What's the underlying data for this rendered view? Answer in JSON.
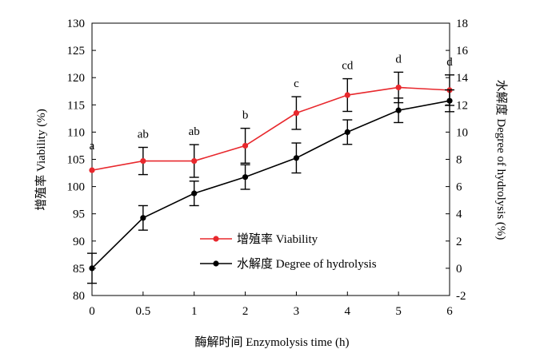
{
  "chart_data": {
    "type": "line",
    "xlabel": "酶解时间 Enzymolysis time (h)",
    "ylabel_left": "增殖率 Viability (%)",
    "ylabel_right": "水解度 Degree of hydrolysis (%)",
    "x": [
      "0",
      "0.5",
      "1",
      "2",
      "3",
      "4",
      "5",
      "6"
    ],
    "ylim_left": [
      80,
      130
    ],
    "yticks_left": [
      "80",
      "85",
      "90",
      "95",
      "100",
      "105",
      "110",
      "115",
      "120",
      "125",
      "130"
    ],
    "ylim_right": [
      -2,
      18
    ],
    "yticks_right": [
      "-2",
      "0",
      "2",
      "4",
      "6",
      "8",
      "10",
      "12",
      "14",
      "16",
      "18"
    ],
    "grid": false,
    "legend_position": "center",
    "series": [
      {
        "name": "增殖率 Viability",
        "axis": "left",
        "color": "#e8282d",
        "marker": "circle",
        "values": [
          103.0,
          104.7,
          104.7,
          107.5,
          113.5,
          116.8,
          118.2,
          117.7
        ],
        "errors": [
          0,
          2.5,
          3.0,
          3.2,
          3.0,
          3.0,
          2.8,
          2.8
        ],
        "annotations": [
          "a",
          "ab",
          "ab",
          "b",
          "c",
          "cd",
          "d",
          "d"
        ]
      },
      {
        "name": "水解度 Degree of hydrolysis",
        "axis": "right",
        "color": "#000000",
        "marker": "circle",
        "values": [
          0,
          3.7,
          5.5,
          6.7,
          8.1,
          10.0,
          11.6,
          12.3
        ],
        "errors": [
          1.1,
          0.9,
          0.9,
          0.9,
          1.1,
          0.9,
          0.9,
          0.8
        ]
      }
    ]
  }
}
